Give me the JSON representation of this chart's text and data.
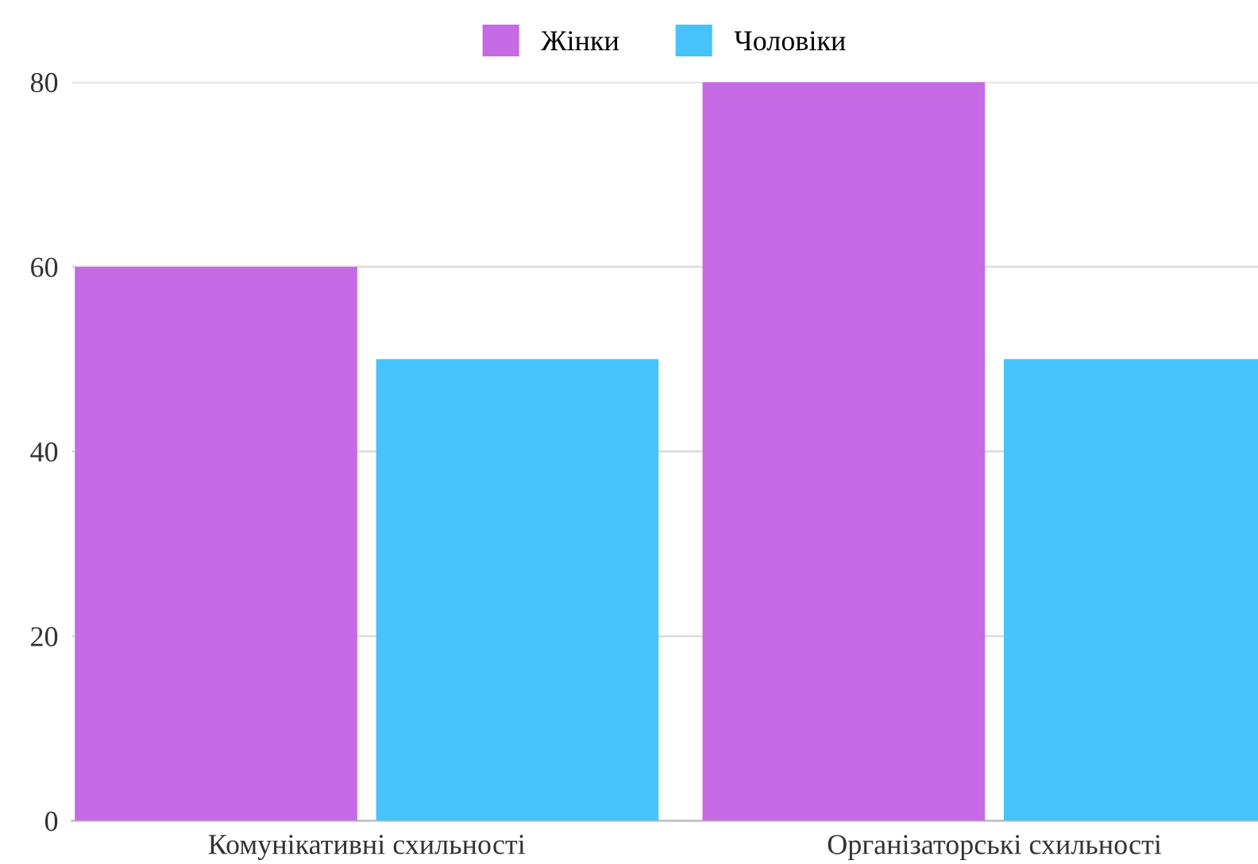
{
  "chart_data": {
    "type": "bar",
    "categories": [
      "Комунікативні схильності",
      "Організаторські схильності"
    ],
    "series": [
      {
        "name": "Жінки",
        "color": "#c76ae6",
        "values": [
          60,
          80
        ]
      },
      {
        "name": "Чоловіки",
        "color": "#47c3fb",
        "values": [
          50,
          50
        ]
      }
    ],
    "ylim": [
      0,
      80
    ],
    "yticks": [
      0,
      20,
      40,
      60,
      80
    ],
    "grid": "y",
    "legend": "top"
  }
}
